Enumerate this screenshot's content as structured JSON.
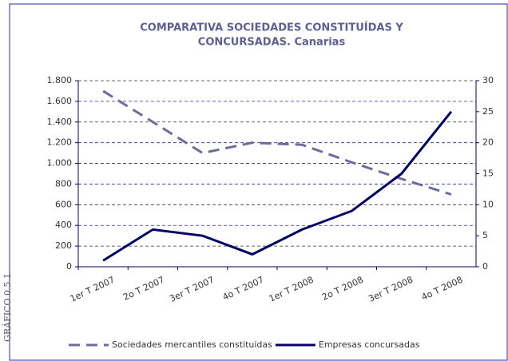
{
  "figure_label": "GRÁFICO 0.5.1",
  "chart_data": {
    "type": "line",
    "title": [
      "COMPARATIVA SOCIEDADES CONSTITUÍDAS Y",
      "CONCURSADAS. Canarias"
    ],
    "categories": [
      "1er T 2007",
      "2o T 2007",
      "3er T 2007",
      "4o T 2007",
      "1er T 2008",
      "2o T 2008",
      "3er T 2008",
      "4o T 2008"
    ],
    "series": [
      {
        "name": "Sociedades mercantiles constituidas",
        "color": "#6b6b9e",
        "dashed": true,
        "values": [
          1700,
          1400,
          1100,
          1200,
          1180,
          1010,
          850,
          700
        ]
      },
      {
        "name": "Empresas concursadas",
        "color": "#000066",
        "axis": "y2",
        "values": [
          1,
          6,
          5,
          2,
          6,
          9,
          15,
          25
        ]
      }
    ],
    "ylim": [
      0,
      1800
    ],
    "yticks": [
      0,
      200,
      400,
      600,
      800,
      {
        "value": 1000,
        "label": "1.000"
      },
      {
        "value": 1200,
        "label": "1.200"
      },
      {
        "value": 1400,
        "label": "1.400"
      },
      {
        "value": 1600,
        "label": "1.600"
      },
      {
        "value": 1800,
        "label": "1.800"
      }
    ],
    "y2lim": [
      0,
      30
    ],
    "y2ticks": [
      0,
      5,
      10,
      15,
      20,
      25,
      30
    ],
    "grid": true,
    "legend": "bottom"
  }
}
